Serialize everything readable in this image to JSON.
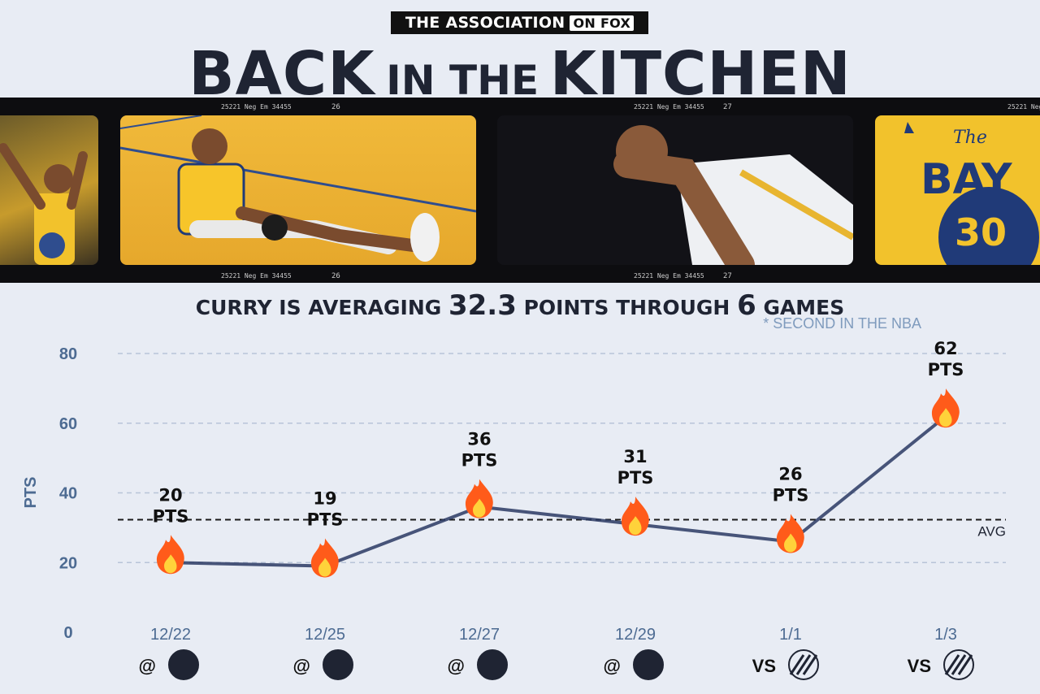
{
  "brand": {
    "prefix": "THE ASSOCIATION",
    "suffix": "ON FOX"
  },
  "headline": {
    "w1": "BACK",
    "w2": "IN THE",
    "w3": "KITCHEN"
  },
  "subtitle": {
    "before": "CURRY IS AVERAGING ",
    "avg": "32.3",
    "middle": " POINTS THROUGH ",
    "games": "6",
    "after": " GAMES"
  },
  "footnote": "* SECOND IN THE NBA",
  "film_strip": {
    "labels": [
      "25221  Neg Em 34455",
      "26",
      "25221  Neg Em 34455",
      "27",
      "25221  Neg Em 34455"
    ],
    "jersey_text": "BAY",
    "jersey_number": "30",
    "jersey_script": "The"
  },
  "colors": {
    "line": "#2a3a63",
    "dash": "#1a1a1a",
    "accent": "#4d6b92",
    "flame_outer": "#ff5b1a",
    "flame_inner": "#ffd23a"
  },
  "chart_data": {
    "type": "line",
    "ylabel": "PTS",
    "ylim": [
      0,
      80
    ],
    "yticks": [
      0,
      20,
      40,
      60,
      80
    ],
    "grid": true,
    "avg_value": 32.3,
    "avg_label": "AVG",
    "unit_label": "PTS",
    "categories": [
      "12/22",
      "12/25",
      "12/27",
      "12/29",
      "1/1",
      "1/3"
    ],
    "values": [
      20,
      19,
      36,
      31,
      26,
      62
    ],
    "locations": [
      "@",
      "@",
      "@",
      "@",
      "VS",
      "VS"
    ],
    "opponents": [
      "nets-logo",
      "bucks-logo",
      "bulls-logo",
      "pistons-logo",
      "blazers-logo",
      "blazers-logo"
    ],
    "marker_icon": "fire-icon"
  }
}
